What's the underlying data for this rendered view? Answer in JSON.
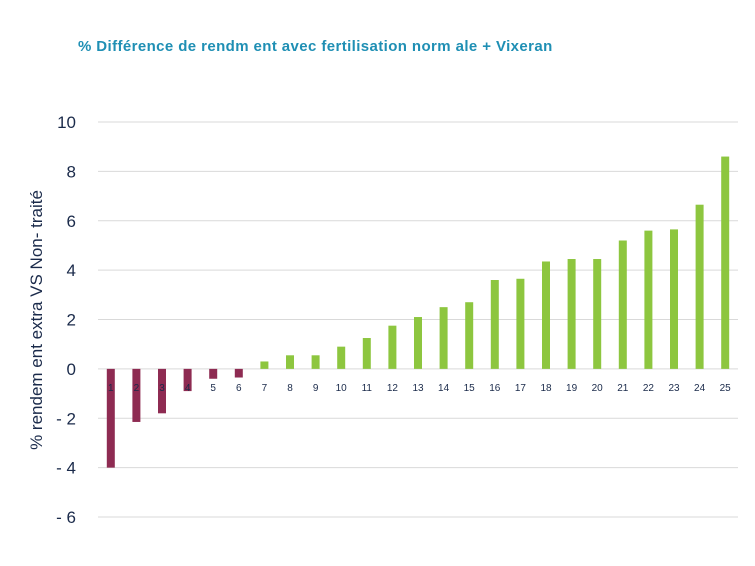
{
  "chart_data": {
    "type": "bar",
    "title": "% Différence de rendm ent avec fertilisation norm ale + Vixeran",
    "ylabel": "% rendem ent extra VS Non- traité",
    "xlabel": "",
    "ylim": [
      -6,
      10
    ],
    "yticks": [
      10,
      8,
      6,
      4,
      2,
      0,
      -2,
      -4,
      -6
    ],
    "ytick_labels": [
      "10",
      "8",
      "6",
      "4",
      "2",
      "0",
      "- 2",
      "- 4",
      "- 6"
    ],
    "grid": true,
    "categories": [
      "1",
      "2",
      "3",
      "4",
      "5",
      "6",
      "7",
      "8",
      "9",
      "10",
      "11",
      "12",
      "13",
      "14",
      "15",
      "16",
      "17",
      "18",
      "19",
      "20",
      "21",
      "22",
      "23",
      "24",
      "25"
    ],
    "values": [
      -4.0,
      -2.15,
      -1.8,
      -0.9,
      -0.4,
      -0.35,
      0.3,
      0.55,
      0.55,
      0.9,
      1.25,
      1.75,
      2.1,
      2.5,
      2.7,
      3.6,
      3.65,
      4.35,
      4.45,
      4.45,
      5.2,
      5.6,
      5.65,
      6.65,
      8.6
    ],
    "colors": {
      "negative": "#8e2b52",
      "positive": "#8dc63f",
      "grid": "#d9d9d9",
      "text": "#1a2a4a",
      "title": "#1f8fb4"
    }
  }
}
